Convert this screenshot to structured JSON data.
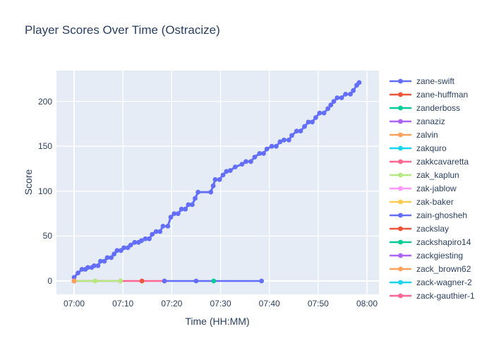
{
  "colors": {
    "paper_bg": "#ffffff",
    "plot_bg": "#e5ecf6",
    "grid": "#ffffff",
    "text": "#2a3f5f"
  },
  "chart_data": {
    "type": "line",
    "title": "Player Scores Over Time (Ostracize)",
    "xlabel": "Time (HH:MM)",
    "ylabel": "Score",
    "x_unit": "minutes after 07:00",
    "xlim": [
      -3.6,
      62.5
    ],
    "ylim": [
      -15,
      234
    ],
    "grid": true,
    "legend_position": "right",
    "x_ticks": [
      {
        "t": 0,
        "label": "07:00"
      },
      {
        "t": 10,
        "label": "07:10"
      },
      {
        "t": 20,
        "label": "07:20"
      },
      {
        "t": 30,
        "label": "07:30"
      },
      {
        "t": 40,
        "label": "07:40"
      },
      {
        "t": 50,
        "label": "07:50"
      },
      {
        "t": 60,
        "label": "08:00"
      }
    ],
    "y_ticks": [
      {
        "v": 0,
        "label": "0"
      },
      {
        "v": 50,
        "label": "50"
      },
      {
        "v": 100,
        "label": "100"
      },
      {
        "v": 150,
        "label": "150"
      },
      {
        "v": 200,
        "label": "200"
      }
    ],
    "series": [
      {
        "name": "zane-swift",
        "color": "#636efa",
        "line_width": 3,
        "points": [
          [
            0,
            4
          ],
          [
            0.8,
            9
          ],
          [
            1.6,
            13
          ],
          [
            2.3,
            13
          ],
          [
            2.8,
            15
          ],
          [
            3.6,
            15
          ],
          [
            4.1,
            17
          ],
          [
            4.9,
            17
          ],
          [
            5.4,
            22
          ],
          [
            6.2,
            22
          ],
          [
            6.8,
            26
          ],
          [
            7.6,
            26
          ],
          [
            8.2,
            30
          ],
          [
            8.8,
            34
          ],
          [
            9.6,
            34
          ],
          [
            10.2,
            37
          ],
          [
            11.0,
            37
          ],
          [
            11.6,
            40
          ],
          [
            12.4,
            43
          ],
          [
            13.2,
            43
          ],
          [
            13.8,
            45
          ],
          [
            14.6,
            47
          ],
          [
            15.4,
            47
          ],
          [
            16.0,
            52
          ],
          [
            16.8,
            55
          ],
          [
            17.6,
            55
          ],
          [
            18.2,
            61
          ],
          [
            19.2,
            61
          ],
          [
            19.8,
            71
          ],
          [
            20.5,
            75
          ],
          [
            21.3,
            75
          ],
          [
            22.0,
            80
          ],
          [
            22.8,
            80
          ],
          [
            23.4,
            85
          ],
          [
            24.2,
            85
          ],
          [
            24.8,
            92
          ],
          [
            25.4,
            99
          ],
          [
            28.0,
            99
          ],
          [
            28.5,
            106
          ],
          [
            28.9,
            113
          ],
          [
            29.8,
            113
          ],
          [
            30.5,
            118
          ],
          [
            31.2,
            122
          ],
          [
            32.0,
            123
          ],
          [
            33.0,
            127
          ],
          [
            34.4,
            130
          ],
          [
            35.2,
            133
          ],
          [
            36.2,
            133
          ],
          [
            37.0,
            138
          ],
          [
            38.0,
            142
          ],
          [
            38.8,
            142
          ],
          [
            39.5,
            147
          ],
          [
            40.5,
            150
          ],
          [
            41.4,
            150
          ],
          [
            42.2,
            155
          ],
          [
            43.0,
            157
          ],
          [
            44.0,
            157
          ],
          [
            44.6,
            162
          ],
          [
            45.6,
            167
          ],
          [
            46.4,
            167
          ],
          [
            47.2,
            172
          ],
          [
            48.0,
            177
          ],
          [
            48.8,
            177
          ],
          [
            49.5,
            182
          ],
          [
            50.3,
            187
          ],
          [
            51.2,
            187
          ],
          [
            52.0,
            192
          ],
          [
            52.6,
            196
          ],
          [
            53.2,
            200
          ],
          [
            53.9,
            204
          ],
          [
            54.8,
            204
          ],
          [
            55.6,
            208
          ],
          [
            56.6,
            208
          ],
          [
            57.2,
            212
          ],
          [
            57.9,
            218
          ],
          [
            58.4,
            221
          ]
        ]
      },
      {
        "name": "zane-huffman",
        "color": "#ef553b",
        "line_width": 2.5,
        "points": [
          [
            0,
            0
          ]
        ]
      },
      {
        "name": "zanderboss",
        "color": "#00cc96",
        "line_width": 2.5,
        "points": [
          [
            0,
            0
          ]
        ]
      },
      {
        "name": "zanaziz",
        "color": "#ab63fa",
        "line_width": 2.5,
        "points": [
          [
            0,
            0
          ]
        ]
      },
      {
        "name": "zalvin",
        "color": "#ffa15a",
        "line_width": 2.5,
        "points": [
          [
            0,
            0
          ]
        ]
      },
      {
        "name": "zakquro",
        "color": "#19d3f3",
        "line_width": 2.5,
        "points": [
          [
            0,
            0
          ]
        ]
      },
      {
        "name": "zakkcavaretta",
        "color": "#ff6692",
        "line_width": 2.5,
        "points": [
          [
            0,
            0
          ],
          [
            9.5,
            0
          ],
          [
            18.5,
            0
          ]
        ]
      },
      {
        "name": "zak_kaplun",
        "color": "#b6e880",
        "line_width": 2.5,
        "points": [
          [
            0,
            0
          ],
          [
            4.3,
            0
          ],
          [
            9.5,
            0
          ]
        ]
      },
      {
        "name": "zak-jablow",
        "color": "#ff97ff",
        "line_width": 2.5,
        "points": [
          [
            0,
            0
          ]
        ]
      },
      {
        "name": "zak-baker",
        "color": "#fecb52",
        "line_width": 2.5,
        "points": [
          [
            0,
            0
          ]
        ]
      },
      {
        "name": "zain-ghosheh",
        "color": "#636efa",
        "line_width": 2.5,
        "points": [
          [
            18.5,
            0
          ],
          [
            25.0,
            0
          ],
          [
            38.4,
            0
          ]
        ]
      },
      {
        "name": "zackslay",
        "color": "#ef553b",
        "line_width": 2.5,
        "points": [
          [
            13.9,
            0
          ]
        ]
      },
      {
        "name": "zackshapiro14",
        "color": "#00cc96",
        "line_width": 2.5,
        "points": [
          [
            28.6,
            0
          ]
        ]
      },
      {
        "name": "zackgiesting",
        "color": "#ab63fa",
        "line_width": 2.5,
        "points": [
          [
            0,
            0
          ]
        ]
      },
      {
        "name": "zack_brown62",
        "color": "#ffa15a",
        "line_width": 2.5,
        "points": [
          [
            0,
            0
          ]
        ]
      },
      {
        "name": "zack-wagner-2",
        "color": "#19d3f3",
        "line_width": 2.5,
        "points": []
      },
      {
        "name": "zack-gauthier-1",
        "color": "#ff6692",
        "line_width": 2.5,
        "points": []
      }
    ]
  }
}
